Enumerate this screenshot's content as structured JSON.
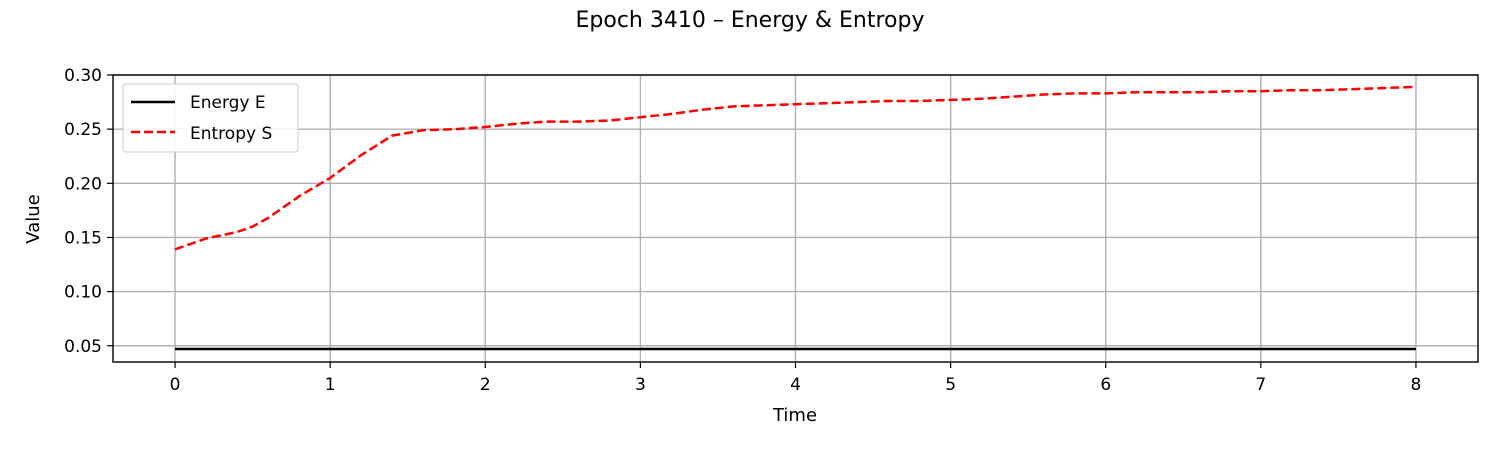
{
  "chart_data": {
    "type": "line",
    "title": "Epoch 3410 – Energy & Entropy",
    "xlabel": "Time",
    "ylabel": "Value",
    "xlim": [
      -0.4,
      8.4
    ],
    "ylim": [
      0.035,
      0.3
    ],
    "xticks": [
      "0",
      "1",
      "2",
      "3",
      "4",
      "5",
      "6",
      "7",
      "8"
    ],
    "xtick_values": [
      0,
      1,
      2,
      3,
      4,
      5,
      6,
      7,
      8
    ],
    "yticks": [
      "0.05",
      "0.10",
      "0.15",
      "0.20",
      "0.25",
      "0.30"
    ],
    "ytick_values": [
      0.05,
      0.1,
      0.15,
      0.2,
      0.25,
      0.3
    ],
    "grid": true,
    "legend_position": "upper-left",
    "x": [
      0,
      0.2,
      0.4,
      0.5,
      0.6,
      0.8,
      1.0,
      1.2,
      1.4,
      1.6,
      1.8,
      2.0,
      2.2,
      2.4,
      2.6,
      2.8,
      3.0,
      3.2,
      3.4,
      3.6,
      3.8,
      4.0,
      4.2,
      4.4,
      4.6,
      4.8,
      5.0,
      5.2,
      5.4,
      5.6,
      5.8,
      6.0,
      6.2,
      6.4,
      6.6,
      6.8,
      7.0,
      7.2,
      7.4,
      7.6,
      7.8,
      8.0
    ],
    "series": [
      {
        "name": "Energy E",
        "color": "#000000",
        "style": "solid",
        "values": [
          0.047,
          0.047,
          0.047,
          0.047,
          0.047,
          0.047,
          0.047,
          0.047,
          0.047,
          0.047,
          0.047,
          0.047,
          0.047,
          0.047,
          0.047,
          0.047,
          0.047,
          0.047,
          0.047,
          0.047,
          0.047,
          0.047,
          0.047,
          0.047,
          0.047,
          0.047,
          0.047,
          0.047,
          0.047,
          0.047,
          0.047,
          0.047,
          0.047,
          0.047,
          0.047,
          0.047,
          0.047,
          0.047,
          0.047,
          0.047,
          0.047,
          0.047
        ]
      },
      {
        "name": "Entropy S",
        "color": "#ff0000",
        "style": "dashed",
        "values": [
          0.139,
          0.149,
          0.155,
          0.16,
          0.168,
          0.188,
          0.205,
          0.226,
          0.244,
          0.249,
          0.25,
          0.252,
          0.255,
          0.257,
          0.257,
          0.258,
          0.261,
          0.264,
          0.268,
          0.271,
          0.272,
          0.273,
          0.274,
          0.275,
          0.276,
          0.276,
          0.277,
          0.278,
          0.28,
          0.282,
          0.283,
          0.283,
          0.284,
          0.284,
          0.284,
          0.285,
          0.285,
          0.286,
          0.286,
          0.287,
          0.288,
          0.289
        ]
      }
    ]
  }
}
